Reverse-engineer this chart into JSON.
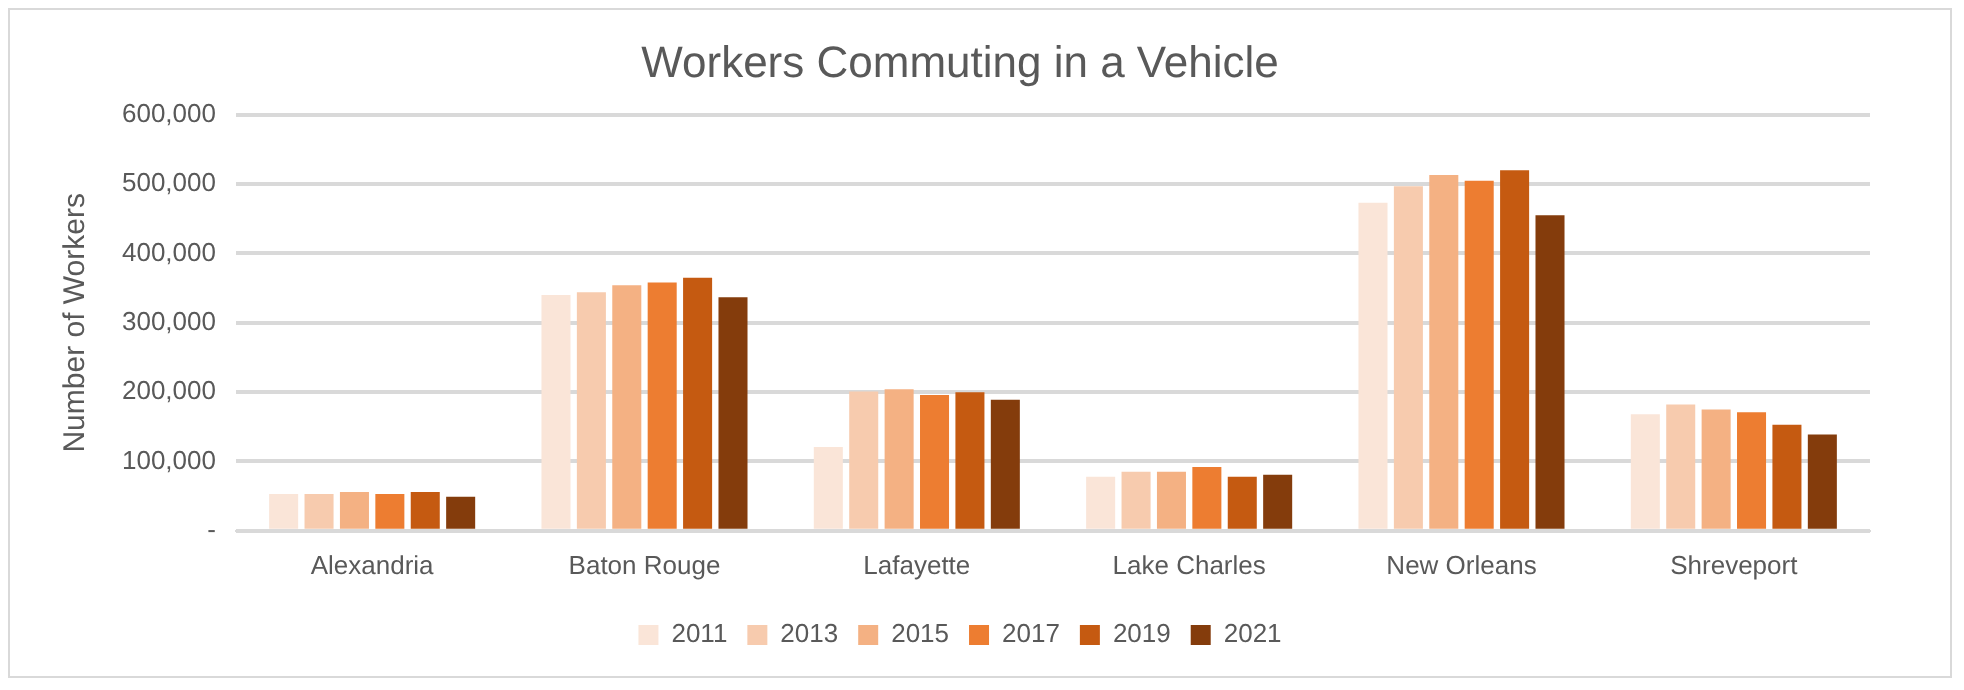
{
  "chart_data": {
    "type": "bar",
    "title": "Workers Commuting in a Vehicle",
    "ylabel": "Number of Workers",
    "categories": [
      "Alexandria",
      "Baton Rouge",
      "Lafayette",
      "Lake Charles",
      "New Orleans",
      "Shreveport"
    ],
    "series": [
      {
        "name": "2011",
        "color": "#fae5d8",
        "values": [
          53000,
          340000,
          121000,
          78000,
          473000,
          168000
        ]
      },
      {
        "name": "2013",
        "color": "#f7cbae",
        "values": [
          53000,
          344000,
          201000,
          85000,
          497000,
          182000
        ]
      },
      {
        "name": "2015",
        "color": "#f4b183",
        "values": [
          56000,
          354000,
          204000,
          85000,
          513000,
          175000
        ]
      },
      {
        "name": "2017",
        "color": "#ed7d31",
        "values": [
          53000,
          358000,
          196000,
          92000,
          505000,
          171000
        ]
      },
      {
        "name": "2019",
        "color": "#c55a11",
        "values": [
          56000,
          365000,
          200000,
          78000,
          520000,
          153000
        ]
      },
      {
        "name": "2021",
        "color": "#843c0c",
        "values": [
          49000,
          337000,
          189000,
          81000,
          455000,
          139000
        ]
      }
    ],
    "ylim": [
      0,
      600000
    ],
    "yticks": [
      {
        "value": 0,
        "label": "-"
      },
      {
        "value": 100000,
        "label": "100,000"
      },
      {
        "value": 200000,
        "label": "200,000"
      },
      {
        "value": 300000,
        "label": "300,000"
      },
      {
        "value": 400000,
        "label": "400,000"
      },
      {
        "value": 500000,
        "label": "500,000"
      },
      {
        "value": 600000,
        "label": "600,000"
      }
    ],
    "grid": "y",
    "legend": "bottom"
  }
}
